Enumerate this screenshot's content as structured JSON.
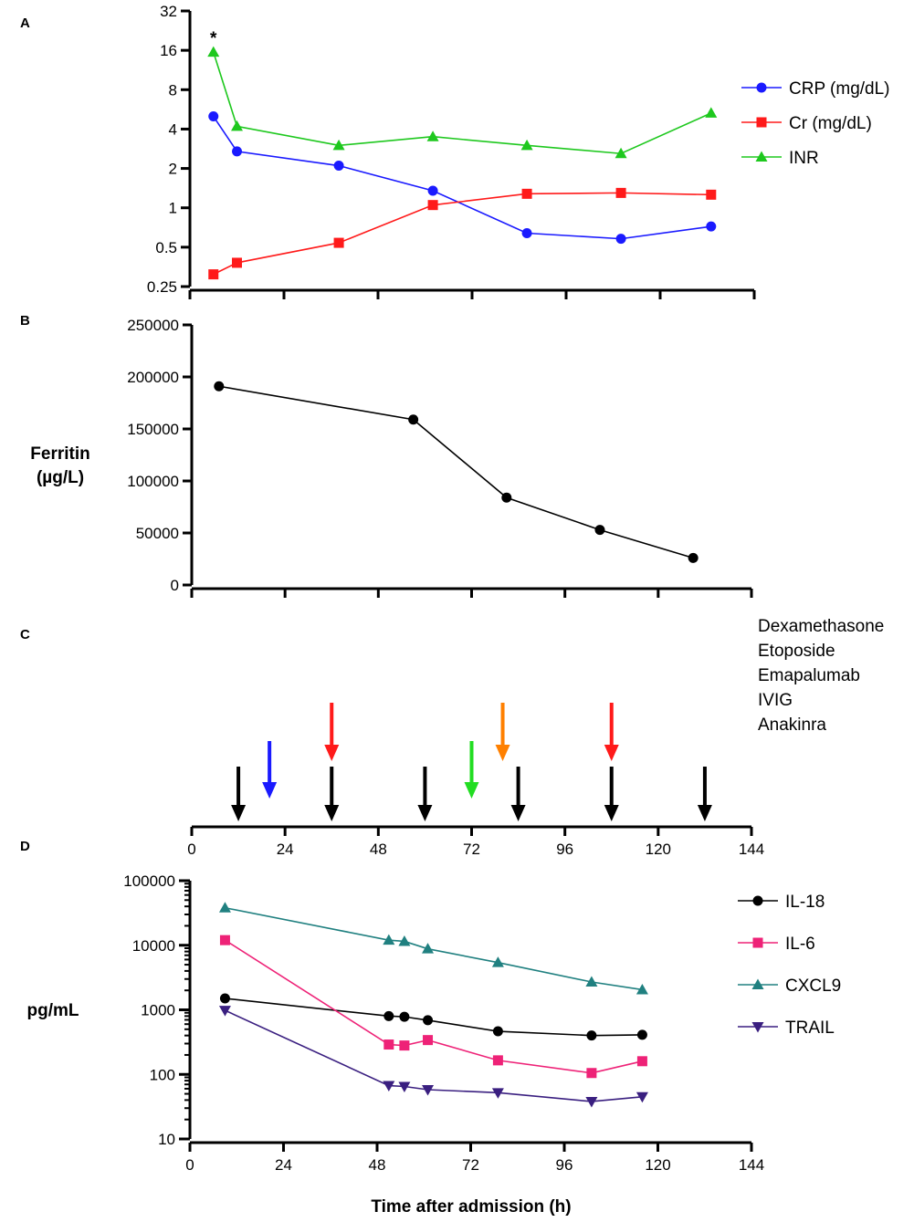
{
  "chart_data": [
    {
      "panel": "A",
      "type": "line",
      "yscale": "log2",
      "ylim": [
        0.25,
        32
      ],
      "yticks": [
        "0.25",
        "0.5",
        "1",
        "2",
        "4",
        "8",
        "16",
        "32"
      ],
      "xlim": [
        0,
        144
      ],
      "x_tick_labels": "none",
      "annotation": "*",
      "series": [
        {
          "name": "CRP (mg/dL)",
          "color": "#1a1aff",
          "marker": "circle",
          "x": [
            6,
            12,
            38,
            62,
            86,
            110,
            133
          ],
          "values": [
            5.0,
            2.7,
            2.1,
            1.35,
            0.64,
            0.58,
            0.72
          ]
        },
        {
          "name": "Cr (mg/dL)",
          "color": "#ff1a1a",
          "marker": "square",
          "x": [
            6,
            12,
            38,
            62,
            86,
            110,
            133
          ],
          "values": [
            0.31,
            0.38,
            0.54,
            1.05,
            1.28,
            1.3,
            1.26
          ]
        },
        {
          "name": "INR",
          "color": "#1ec81e",
          "marker": "triangle",
          "x": [
            6,
            12,
            38,
            62,
            86,
            110,
            133
          ],
          "values": [
            15.5,
            4.2,
            3.0,
            3.5,
            3.0,
            2.6,
            5.3
          ]
        }
      ]
    },
    {
      "panel": "B",
      "type": "line",
      "ylabel_lines": [
        "Ferritin",
        "(µg/L)"
      ],
      "ylim": [
        0,
        250000
      ],
      "yticks": [
        "0",
        "50000",
        "100000",
        "150000",
        "200000",
        "250000"
      ],
      "xlim": [
        0,
        144
      ],
      "x_tick_labels": "none",
      "series": [
        {
          "name": "Ferritin",
          "color": "#000000",
          "marker": "circle",
          "x": [
            7,
            57,
            81,
            105,
            129
          ],
          "values": [
            191000,
            159000,
            84000,
            53000,
            26000
          ]
        }
      ]
    },
    {
      "panel": "C",
      "type": "timeline",
      "xlim": [
        0,
        144
      ],
      "xticks": [
        "0",
        "24",
        "48",
        "72",
        "96",
        "120",
        "144"
      ],
      "legend": [
        {
          "name": "Dexamethasone",
          "color": "#000000"
        },
        {
          "name": "Etoposide",
          "color": "#1a1aff"
        },
        {
          "name": "Emapalumab",
          "color": "#ff1a1a"
        },
        {
          "name": "IVIG",
          "color": "#22dd22"
        },
        {
          "name": "Anakinra",
          "color": "#ff8000"
        }
      ],
      "events": [
        {
          "drug": "Dexamethasone",
          "x": 12,
          "level": 0
        },
        {
          "drug": "Dexamethasone",
          "x": 36,
          "level": 0
        },
        {
          "drug": "Dexamethasone",
          "x": 60,
          "level": 0
        },
        {
          "drug": "Dexamethasone",
          "x": 84,
          "level": 0
        },
        {
          "drug": "Dexamethasone",
          "x": 108,
          "level": 0
        },
        {
          "drug": "Dexamethasone",
          "x": 132,
          "level": 0
        },
        {
          "drug": "Etoposide",
          "x": 20,
          "level": 1
        },
        {
          "drug": "IVIG",
          "x": 72,
          "level": 1
        },
        {
          "drug": "Emapalumab",
          "x": 36,
          "level": 2
        },
        {
          "drug": "Emapalumab",
          "x": 108,
          "level": 2
        },
        {
          "drug": "Anakinra",
          "x": 80,
          "level": 2
        }
      ]
    },
    {
      "panel": "D",
      "type": "line",
      "yscale": "log10",
      "ylabel": "pg/mL",
      "xlabel": "Time after admission (h)",
      "ylim": [
        10,
        100000
      ],
      "yticks": [
        "10",
        "100",
        "1000",
        "10000",
        "100000"
      ],
      "xlim": [
        0,
        144
      ],
      "xticks": [
        "0",
        "24",
        "48",
        "72",
        "96",
        "120",
        "144"
      ],
      "series": [
        {
          "name": "IL-18",
          "color": "#000000",
          "marker": "circle",
          "x": [
            9,
            51,
            55,
            61,
            79,
            103,
            116
          ],
          "values": [
            1500,
            800,
            780,
            690,
            465,
            400,
            410
          ]
        },
        {
          "name": "IL-6",
          "color": "#ee2277",
          "marker": "square",
          "x": [
            9,
            51,
            55,
            61,
            79,
            103,
            116
          ],
          "values": [
            12000,
            290,
            280,
            340,
            165,
            105,
            160
          ]
        },
        {
          "name": "CXCL9",
          "color": "#208080",
          "marker": "triangle",
          "x": [
            9,
            51,
            55,
            61,
            79,
            103,
            116
          ],
          "values": [
            38000,
            12000,
            11500,
            8800,
            5400,
            2700,
            2050
          ]
        },
        {
          "name": "TRAIL",
          "color": "#3a1f80",
          "marker": "triangle-down",
          "x": [
            9,
            51,
            55,
            61,
            79,
            103,
            116
          ],
          "values": [
            980,
            67,
            65,
            58,
            52,
            38,
            45
          ]
        }
      ]
    }
  ]
}
